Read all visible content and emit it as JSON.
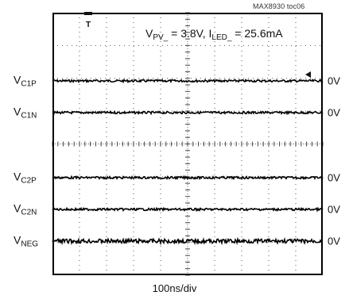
{
  "figure_tag": "MAX8930 toc06",
  "condition": {
    "vpv_label": "V",
    "vpv_sub": "PV_",
    "vpv_value": " = 3.8V, I",
    "iled_sub": "LED_",
    "iled_value": " = 25.6mA"
  },
  "timebase": "100ns/div",
  "trigger_marker": "T",
  "chart_data": {
    "type": "line",
    "title": "",
    "xlabel": "100ns/div",
    "ylabel": "",
    "grid": true,
    "x_divisions": 10,
    "y_divisions": 8,
    "series": [
      {
        "name": "VC1P",
        "label_main": "V",
        "label_sub": "C1P",
        "level": "0V",
        "value": 0
      },
      {
        "name": "VC1N",
        "label_main": "V",
        "label_sub": "C1N",
        "level": "0V",
        "value": 0
      },
      {
        "name": "VC2P",
        "label_main": "V",
        "label_sub": "C2P",
        "level": "0V",
        "value": 0
      },
      {
        "name": "VC2N",
        "label_main": "V",
        "label_sub": "C2N",
        "level": "0V",
        "value": 0
      },
      {
        "name": "VNEG",
        "label_main": "V",
        "label_sub": "NEG",
        "level": "0V",
        "value": 0
      }
    ]
  }
}
